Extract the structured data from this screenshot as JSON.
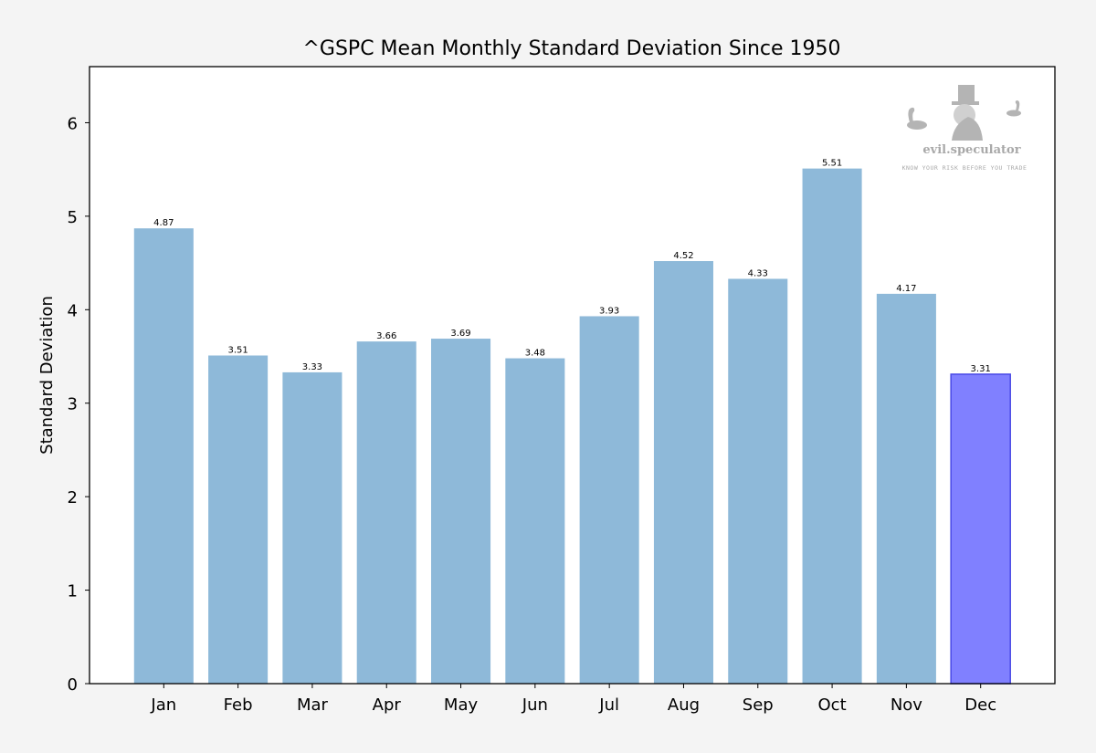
{
  "chart_data": {
    "type": "bar",
    "title": "^GSPC Mean Monthly Standard Deviation Since 1950",
    "xlabel": "",
    "ylabel": "Standard Deviation",
    "categories": [
      "Jan",
      "Feb",
      "Mar",
      "Apr",
      "May",
      "Jun",
      "Jul",
      "Aug",
      "Sep",
      "Oct",
      "Nov",
      "Dec"
    ],
    "values": [
      4.87,
      3.51,
      3.33,
      3.66,
      3.69,
      3.48,
      3.93,
      4.52,
      4.33,
      5.51,
      4.17,
      3.31
    ],
    "data_labels": [
      "4.87",
      "3.51",
      "3.33",
      "3.66",
      "3.69",
      "3.48",
      "3.93",
      "4.52",
      "4.33",
      "5.51",
      "4.17",
      "3.31"
    ],
    "highlighted_category": "Dec",
    "ylim": [
      0,
      6.6
    ],
    "yticks": [
      0,
      1,
      2,
      3,
      4,
      5,
      6
    ],
    "grid": false,
    "colors": {
      "bar": "#8eb9d9",
      "highlight_bar": "#8080ff",
      "highlight_edge": "#4a4ae6",
      "highlight_tick_label": "#0000ee"
    }
  },
  "watermark": {
    "brand": "evil.speculator",
    "tagline": "KNOW YOUR RISK BEFORE YOU TRADE"
  }
}
